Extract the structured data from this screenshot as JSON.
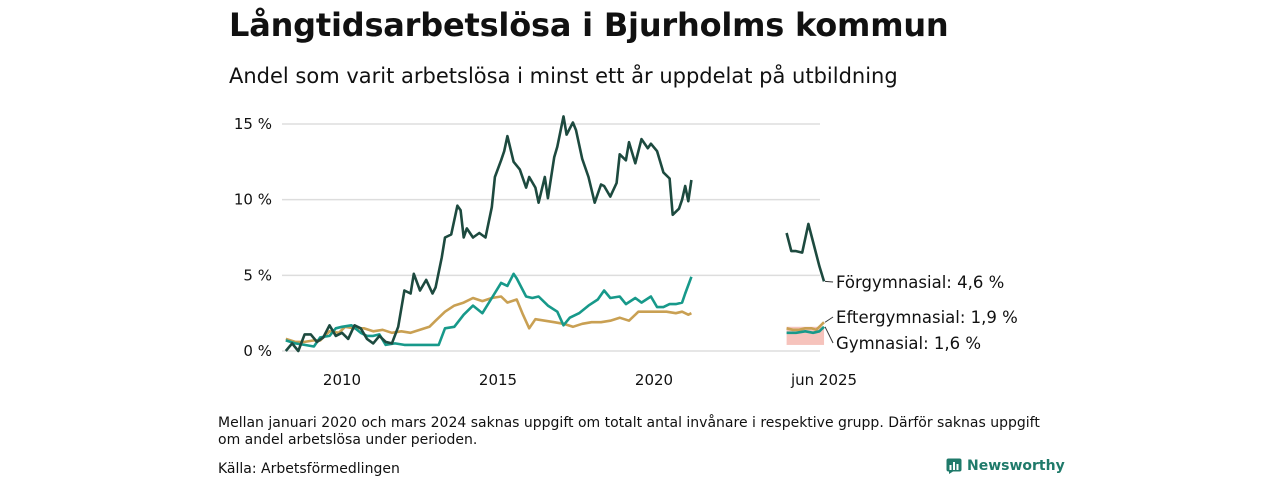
{
  "header": {
    "title": "Långtidsarbetslösa i Bjurholms kommun",
    "subtitle": "Andel som varit arbetslösa i minst ett år uppdelat på utbildning"
  },
  "footer": {
    "note": "Mellan januari 2020 och mars 2024 saknas uppgift om totalt antal invånare i respektive grupp. Därför saknas uppgift om andel arbetslösa under perioden.",
    "source": "Källa: Arbetsförmedlingen",
    "brand": "Newsworthy"
  },
  "colors": {
    "forgymnasial": "#1d4a3f",
    "gymnasial": "#17998a",
    "eftergymnasial": "#c9a053",
    "uncertainty": "#f4b8b0",
    "grid": "#dddddd"
  },
  "chart_data": {
    "type": "line",
    "title": "Långtidsarbetslösa i Bjurholms kommun",
    "subtitle": "Andel som varit arbetslösa i minst ett år uppdelat på utbildning",
    "y_ticks": [
      "0 %",
      "5 %",
      "10 %",
      "15 %"
    ],
    "x_ticks": [
      "2010",
      "2015",
      "2020",
      "jun 2025"
    ],
    "ylim": [
      0,
      15.5
    ],
    "grid": true,
    "x_unit": "year",
    "series": [
      {
        "name": "Förgymnasial",
        "end_label": "Förgymnasial: 4,6 %",
        "color": "#1d4a3f",
        "segments": [
          [
            [
              2008.2,
              0.0
            ],
            [
              2008.4,
              0.5
            ],
            [
              2008.6,
              0.0
            ],
            [
              2008.8,
              1.1
            ],
            [
              2009.0,
              1.1
            ],
            [
              2009.2,
              0.6
            ],
            [
              2009.4,
              0.9
            ],
            [
              2009.6,
              1.7
            ],
            [
              2009.8,
              1.0
            ],
            [
              2010.0,
              1.2
            ],
            [
              2010.2,
              0.8
            ],
            [
              2010.4,
              1.7
            ],
            [
              2010.6,
              1.5
            ],
            [
              2010.8,
              0.8
            ],
            [
              2011.0,
              0.5
            ],
            [
              2011.2,
              1.0
            ],
            [
              2011.4,
              0.6
            ],
            [
              2011.6,
              0.5
            ],
            [
              2011.8,
              1.6
            ],
            [
              2012.0,
              4.0
            ],
            [
              2012.2,
              3.8
            ],
            [
              2012.3,
              5.1
            ],
            [
              2012.5,
              4.0
            ],
            [
              2012.7,
              4.7
            ],
            [
              2012.9,
              3.8
            ],
            [
              2013.0,
              4.2
            ],
            [
              2013.2,
              6.2
            ],
            [
              2013.3,
              7.5
            ],
            [
              2013.5,
              7.7
            ],
            [
              2013.7,
              9.6
            ],
            [
              2013.8,
              9.3
            ],
            [
              2013.9,
              7.5
            ],
            [
              2014.0,
              8.1
            ],
            [
              2014.2,
              7.5
            ],
            [
              2014.4,
              7.8
            ],
            [
              2014.6,
              7.5
            ],
            [
              2014.8,
              9.5
            ],
            [
              2014.9,
              11.5
            ],
            [
              2015.1,
              12.6
            ],
            [
              2015.2,
              13.2
            ],
            [
              2015.3,
              14.2
            ],
            [
              2015.5,
              12.5
            ],
            [
              2015.7,
              12.0
            ],
            [
              2015.9,
              10.8
            ],
            [
              2016.0,
              11.5
            ],
            [
              2016.2,
              10.8
            ],
            [
              2016.3,
              9.8
            ],
            [
              2016.5,
              11.5
            ],
            [
              2016.6,
              10.1
            ],
            [
              2016.8,
              12.8
            ],
            [
              2016.9,
              13.5
            ],
            [
              2017.1,
              15.5
            ],
            [
              2017.2,
              14.3
            ],
            [
              2017.4,
              15.1
            ],
            [
              2017.5,
              14.6
            ],
            [
              2017.7,
              12.7
            ],
            [
              2017.9,
              11.5
            ],
            [
              2018.1,
              9.8
            ],
            [
              2018.3,
              11.0
            ],
            [
              2018.4,
              10.9
            ],
            [
              2018.6,
              10.2
            ],
            [
              2018.8,
              11.1
            ],
            [
              2018.9,
              13.0
            ],
            [
              2019.1,
              12.6
            ],
            [
              2019.2,
              13.8
            ],
            [
              2019.4,
              12.4
            ],
            [
              2019.6,
              14.0
            ],
            [
              2019.8,
              13.4
            ],
            [
              2019.9,
              13.7
            ],
            [
              2020.1,
              13.2
            ],
            [
              2020.3,
              11.8
            ],
            [
              2020.5,
              11.4
            ],
            [
              2020.6,
              9.0
            ],
            [
              2020.8,
              9.4
            ],
            [
              2020.9,
              10.0
            ],
            [
              2021.0,
              10.9
            ],
            [
              2021.1,
              9.9
            ],
            [
              2021.2,
              11.3
            ]
          ],
          [
            [
              2024.25,
              7.8
            ],
            [
              2024.4,
              6.6
            ],
            [
              2024.55,
              6.6
            ],
            [
              2024.75,
              6.5
            ],
            [
              2024.95,
              8.4
            ],
            [
              2025.1,
              7.2
            ],
            [
              2025.3,
              5.6
            ],
            [
              2025.45,
              4.6
            ]
          ]
        ]
      },
      {
        "name": "Gymnasial",
        "end_label": "Gymnasial: 1,6 %",
        "color": "#17998a",
        "segments": [
          [
            [
              2008.2,
              0.7
            ],
            [
              2008.5,
              0.5
            ],
            [
              2008.8,
              0.4
            ],
            [
              2009.1,
              0.3
            ],
            [
              2009.3,
              0.9
            ],
            [
              2009.6,
              1.0
            ],
            [
              2009.8,
              1.5
            ],
            [
              2010.0,
              1.6
            ],
            [
              2010.3,
              1.7
            ],
            [
              2010.6,
              1.2
            ],
            [
              2010.8,
              1.0
            ],
            [
              2011.0,
              1.0
            ],
            [
              2011.2,
              1.1
            ],
            [
              2011.4,
              0.4
            ],
            [
              2011.7,
              0.5
            ],
            [
              2012.0,
              0.4
            ],
            [
              2012.3,
              0.4
            ],
            [
              2012.6,
              0.4
            ],
            [
              2012.9,
              0.4
            ],
            [
              2013.1,
              0.4
            ],
            [
              2013.3,
              1.5
            ],
            [
              2013.6,
              1.6
            ],
            [
              2013.9,
              2.4
            ],
            [
              2014.2,
              3.0
            ],
            [
              2014.5,
              2.5
            ],
            [
              2014.8,
              3.5
            ],
            [
              2015.1,
              4.5
            ],
            [
              2015.3,
              4.3
            ],
            [
              2015.5,
              5.1
            ],
            [
              2015.6,
              4.8
            ],
            [
              2015.9,
              3.6
            ],
            [
              2016.1,
              3.5
            ],
            [
              2016.3,
              3.6
            ],
            [
              2016.6,
              3.0
            ],
            [
              2016.9,
              2.6
            ],
            [
              2017.1,
              1.7
            ],
            [
              2017.3,
              2.2
            ],
            [
              2017.6,
              2.5
            ],
            [
              2017.9,
              3.0
            ],
            [
              2018.2,
              3.4
            ],
            [
              2018.4,
              4.0
            ],
            [
              2018.6,
              3.5
            ],
            [
              2018.9,
              3.6
            ],
            [
              2019.1,
              3.1
            ],
            [
              2019.4,
              3.5
            ],
            [
              2019.6,
              3.2
            ],
            [
              2019.9,
              3.6
            ],
            [
              2020.1,
              2.9
            ],
            [
              2020.3,
              2.9
            ],
            [
              2020.5,
              3.1
            ],
            [
              2020.7,
              3.1
            ],
            [
              2020.9,
              3.2
            ],
            [
              2021.0,
              3.8
            ],
            [
              2021.2,
              4.9
            ]
          ],
          [
            [
              2024.25,
              1.2
            ],
            [
              2024.55,
              1.2
            ],
            [
              2024.85,
              1.3
            ],
            [
              2025.1,
              1.2
            ],
            [
              2025.3,
              1.3
            ],
            [
              2025.45,
              1.6
            ]
          ]
        ]
      },
      {
        "name": "Eftergymnasial",
        "end_label": "Eftergymnasial: 1,9 %",
        "color": "#c9a053",
        "segments": [
          [
            [
              2008.2,
              0.8
            ],
            [
              2008.5,
              0.6
            ],
            [
              2008.8,
              0.6
            ],
            [
              2009.1,
              0.7
            ],
            [
              2009.3,
              0.7
            ],
            [
              2009.6,
              1.3
            ],
            [
              2009.9,
              1.2
            ],
            [
              2010.1,
              1.6
            ],
            [
              2010.4,
              1.5
            ],
            [
              2010.7,
              1.5
            ],
            [
              2011.0,
              1.3
            ],
            [
              2011.3,
              1.4
            ],
            [
              2011.6,
              1.2
            ],
            [
              2011.9,
              1.3
            ],
            [
              2012.2,
              1.2
            ],
            [
              2012.5,
              1.4
            ],
            [
              2012.8,
              1.6
            ],
            [
              2013.0,
              2.0
            ],
            [
              2013.3,
              2.6
            ],
            [
              2013.6,
              3.0
            ],
            [
              2013.9,
              3.2
            ],
            [
              2014.2,
              3.5
            ],
            [
              2014.5,
              3.3
            ],
            [
              2014.8,
              3.5
            ],
            [
              2015.1,
              3.6
            ],
            [
              2015.3,
              3.2
            ],
            [
              2015.6,
              3.4
            ],
            [
              2015.8,
              2.4
            ],
            [
              2016.0,
              1.5
            ],
            [
              2016.2,
              2.1
            ],
            [
              2016.5,
              2.0
            ],
            [
              2016.8,
              1.9
            ],
            [
              2017.1,
              1.8
            ],
            [
              2017.4,
              1.6
            ],
            [
              2017.7,
              1.8
            ],
            [
              2018.0,
              1.9
            ],
            [
              2018.3,
              1.9
            ],
            [
              2018.6,
              2.0
            ],
            [
              2018.9,
              2.2
            ],
            [
              2019.2,
              2.0
            ],
            [
              2019.5,
              2.6
            ],
            [
              2019.8,
              2.6
            ],
            [
              2020.1,
              2.6
            ],
            [
              2020.4,
              2.6
            ],
            [
              2020.7,
              2.5
            ],
            [
              2020.9,
              2.6
            ],
            [
              2021.1,
              2.4
            ],
            [
              2021.2,
              2.5
            ]
          ],
          [
            [
              2024.25,
              1.5
            ],
            [
              2024.45,
              1.4
            ],
            [
              2024.65,
              1.4
            ],
            [
              2024.85,
              1.5
            ],
            [
              2025.05,
              1.5
            ],
            [
              2025.2,
              1.4
            ],
            [
              2025.35,
              1.7
            ],
            [
              2025.45,
              1.9
            ]
          ]
        ]
      }
    ],
    "uncertainty_band": {
      "x": [
        2024.25,
        2025.45
      ],
      "y": [
        0.4,
        1.6
      ]
    }
  }
}
